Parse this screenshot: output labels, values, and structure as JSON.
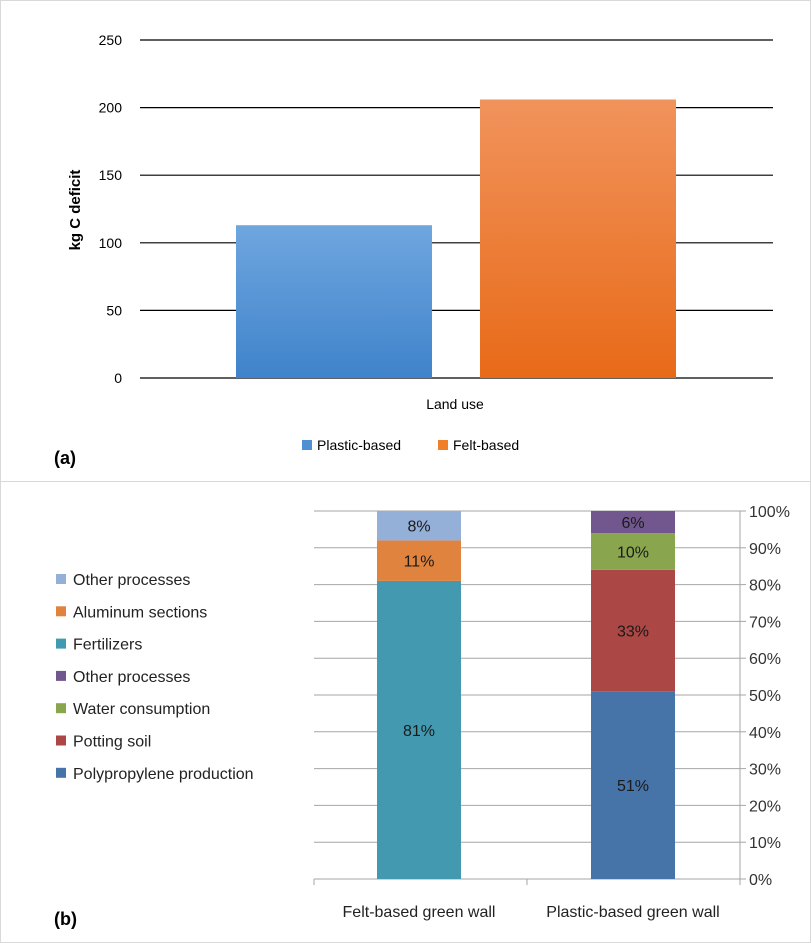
{
  "panel_a": {
    "panel_label": "(a)",
    "chart_data": {
      "type": "bar",
      "title": "",
      "xlabel": "Land use",
      "ylabel": "kg C deficit",
      "ylim": [
        0,
        250
      ],
      "yticks": [
        0,
        50,
        100,
        150,
        200,
        250
      ],
      "grid": true,
      "legend_placement": "bottom",
      "categories": [
        "Land use"
      ],
      "series": [
        {
          "name": "Plastic-based",
          "values": [
            113
          ],
          "color": "#4f8fd4"
        },
        {
          "name": "Felt-based",
          "values": [
            206
          ],
          "color": "#f07f2a"
        }
      ]
    }
  },
  "panel_b": {
    "panel_label": "(b)",
    "chart_data": {
      "type": "bar",
      "stacked": true,
      "title": "",
      "xlabel": "",
      "ylabel": "",
      "ylim": [
        0,
        100
      ],
      "yticks": [
        "0%",
        "10%",
        "20%",
        "30%",
        "40%",
        "50%",
        "60%",
        "70%",
        "80%",
        "90%",
        "100%"
      ],
      "y_axis_side": "right",
      "grid": true,
      "legend_placement": "left",
      "categories": [
        "Felt-based green wall",
        "Plastic-based green wall"
      ],
      "bars": [
        {
          "category": "Felt-based green wall",
          "segments": [
            {
              "name": "Fertilizers",
              "value": 81,
              "label": "81%",
              "color": "#4299b0"
            },
            {
              "name": "Aluminum sections",
              "value": 11,
              "label": "11%",
              "color": "#e0833e"
            },
            {
              "name": "Other processes",
              "value": 8,
              "label": "8%",
              "color": "#94afd8"
            }
          ]
        },
        {
          "category": "Plastic-based green wall",
          "segments": [
            {
              "name": "Polypropylene production",
              "value": 51,
              "label": "51%",
              "color": "#4673a8"
            },
            {
              "name": "Potting soil",
              "value": 33,
              "label": "33%",
              "color": "#ab4744"
            },
            {
              "name": "Water consumption",
              "value": 10,
              "label": "10%",
              "color": "#89a54e"
            },
            {
              "name": "Other processes",
              "value": 6,
              "label": "6%",
              "color": "#72578f"
            }
          ]
        }
      ],
      "legend": [
        {
          "name": "Other processes",
          "color": "#94afd8"
        },
        {
          "name": "Aluminum sections",
          "color": "#e0833e"
        },
        {
          "name": "Fertilizers",
          "color": "#4299b0"
        },
        {
          "name": "Other processes",
          "color": "#72578f"
        },
        {
          "name": "Water consumption",
          "color": "#89a54e"
        },
        {
          "name": "Potting soil",
          "color": "#ab4744"
        },
        {
          "name": "Polypropylene production",
          "color": "#4673a8"
        }
      ]
    }
  }
}
